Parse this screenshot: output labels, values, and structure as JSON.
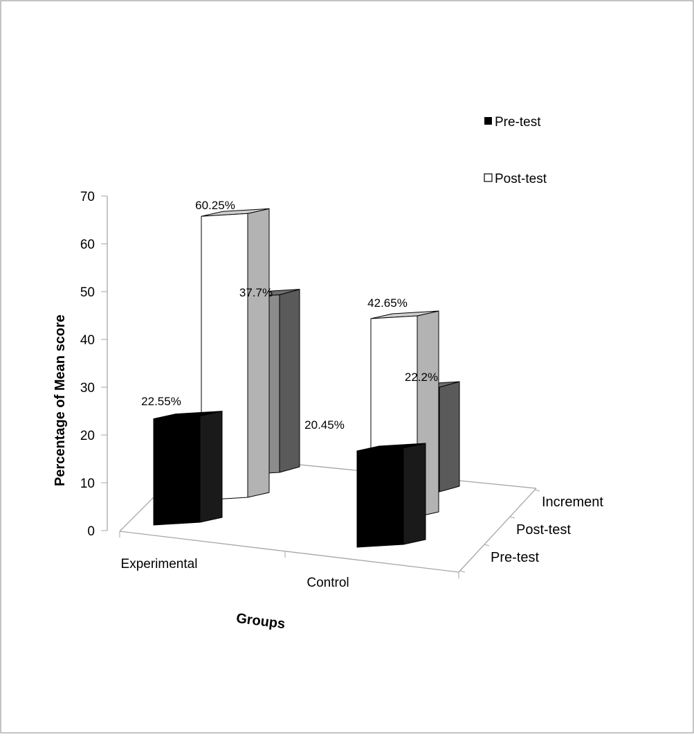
{
  "chart_data": {
    "type": "bar",
    "title": "",
    "xlabel": "Groups",
    "ylabel": "Percentage of Mean score",
    "ylim": [
      0,
      70
    ],
    "y_ticks": [
      "0",
      "10",
      "20",
      "30",
      "40",
      "50",
      "60",
      "70"
    ],
    "categories": [
      "Experimental",
      "Control"
    ],
    "series": [
      {
        "name": "Pre-test",
        "values": [
          22.55,
          20.45
        ],
        "labels": [
          "22.55%",
          "20.45%"
        ]
      },
      {
        "name": "Post-test",
        "values": [
          60.25,
          42.65
        ],
        "labels": [
          "60.25%",
          "42.65%"
        ]
      },
      {
        "name": "Increment",
        "values": [
          37.7,
          22.2
        ],
        "labels": [
          "37.7%",
          "22.2%"
        ]
      }
    ],
    "depth_labels": [
      "Pre-test",
      "Post-test",
      "Increment"
    ],
    "legend": {
      "placement": "top-right",
      "entries": [
        {
          "label": "Pre-test",
          "color": "#000000"
        },
        {
          "label": "Post-test",
          "color": "#ffffff"
        }
      ]
    },
    "colors": {
      "pre_front": "#000000",
      "pre_side": "#1a1a1a",
      "pre_top": "#000000",
      "post_front": "#ffffff",
      "post_side": "#b3b3b3",
      "post_top": "#cfcfcf",
      "inc_front": "#8c8c8c",
      "inc_side": "#5a5a5a",
      "inc_top": "#6e6e6e",
      "frame": "#a6a6a6"
    },
    "grid": false
  }
}
